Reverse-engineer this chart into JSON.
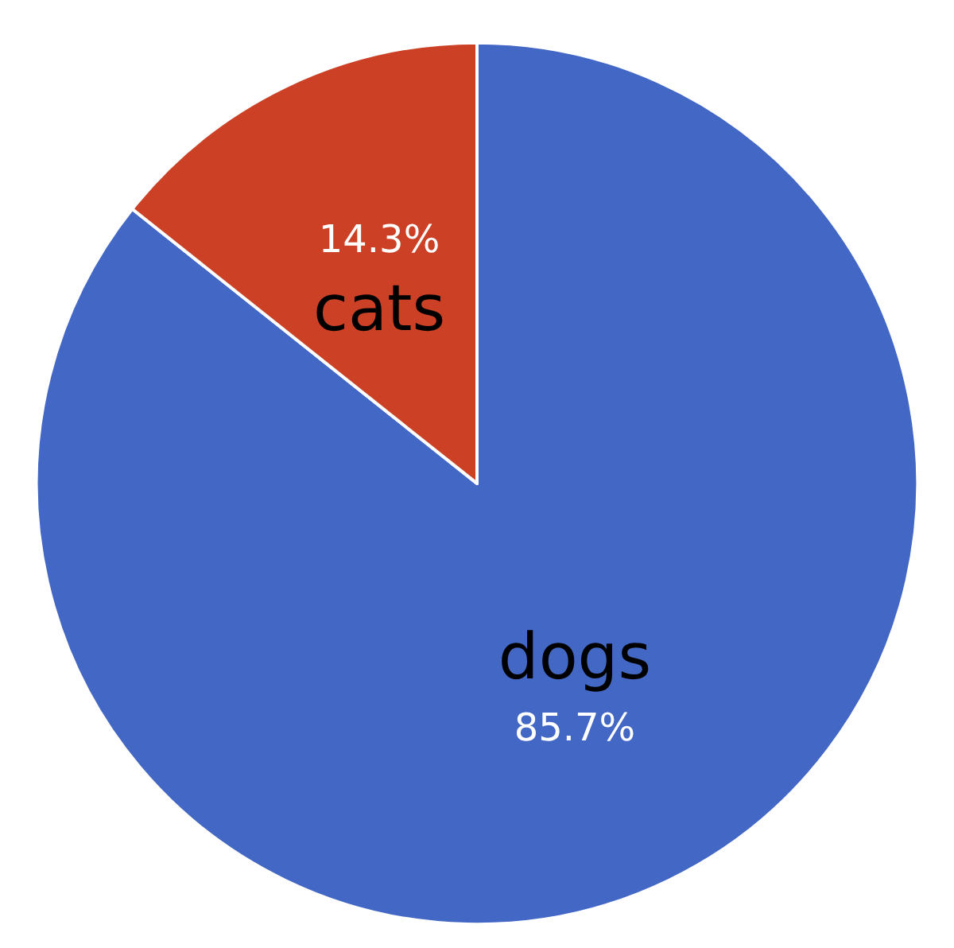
{
  "chart_data": {
    "type": "pie",
    "categories": [
      "dogs",
      "cats"
    ],
    "values": [
      85.7,
      14.3
    ],
    "colors": [
      "#4267c4",
      "#cc4125"
    ],
    "value_labels": [
      "85.7%",
      "14.3%"
    ],
    "legend": false
  }
}
